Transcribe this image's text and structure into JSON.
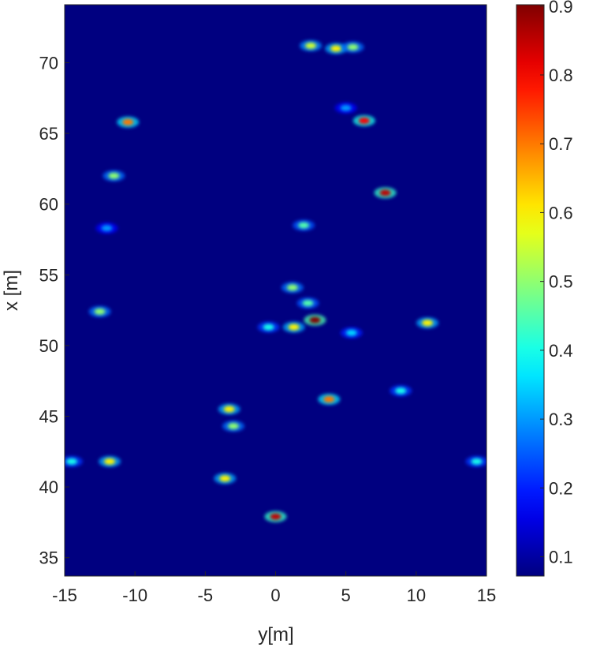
{
  "chart_data": {
    "type": "heatmap",
    "x_label": "y[m]",
    "y_label": "x [m]",
    "xlim": [
      -15,
      15
    ],
    "xticks": [
      -15,
      -10,
      -5,
      0,
      5,
      10,
      15
    ],
    "ylim": [
      33.7,
      74.1
    ],
    "yticks": [
      35,
      40,
      45,
      50,
      55,
      60,
      65,
      70
    ],
    "colormap": "jet",
    "clim": [
      0.072,
      0.902
    ],
    "cticks": [
      0.1,
      0.2,
      0.3,
      0.4,
      0.5,
      0.6,
      0.7,
      0.8,
      0.9
    ],
    "x": [
      2.5,
      4.3,
      5.5,
      -10.5,
      6.3,
      -11.5,
      7.8,
      2,
      -12,
      1.2,
      2.3,
      2.8,
      1.3,
      -0.5,
      -12.5,
      10.8,
      3.8,
      -3.3,
      -3,
      -11.8,
      -14.5,
      14.3,
      0,
      -3.6,
      8.9,
      5,
      5.4
    ],
    "y": [
      71.2,
      71,
      71.1,
      65.8,
      65.9,
      62,
      60.8,
      58.5,
      58.3,
      54.1,
      53,
      51.8,
      51.3,
      51.3,
      52.4,
      51.6,
      46.2,
      45.5,
      44.3,
      41.8,
      41.8,
      41.8,
      37.9,
      40.6,
      46.8,
      66.8,
      50.9
    ],
    "values": [
      0.55,
      0.6,
      0.5,
      0.7,
      0.8,
      0.5,
      0.85,
      0.45,
      0.3,
      0.5,
      0.45,
      0.9,
      0.6,
      0.4,
      0.5,
      0.6,
      0.7,
      0.6,
      0.5,
      0.6,
      0.4,
      0.4,
      0.85,
      0.6,
      0.4,
      0.3,
      0.35
    ]
  }
}
